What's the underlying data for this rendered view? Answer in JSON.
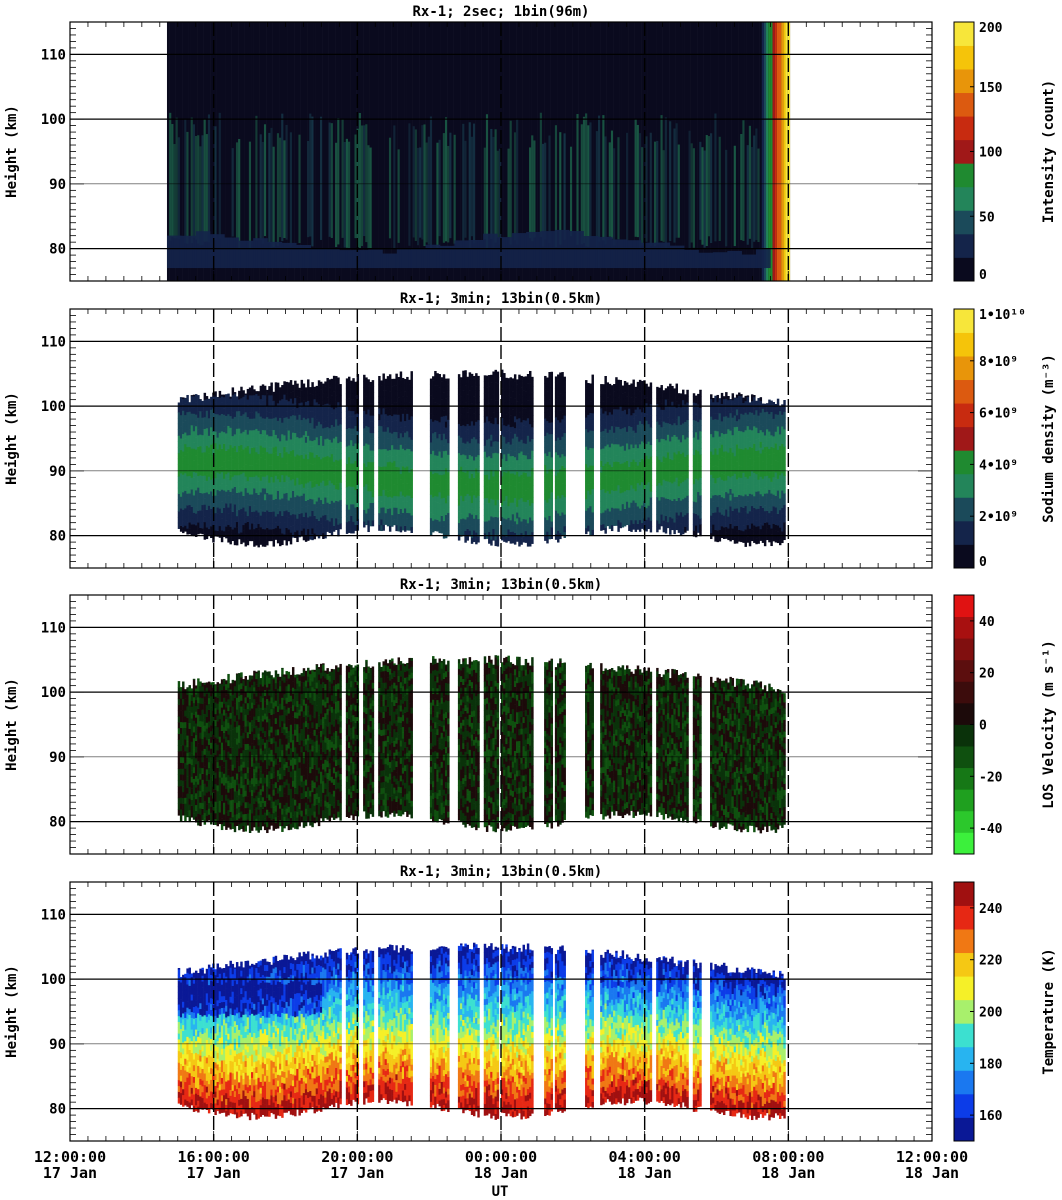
{
  "figure": {
    "x_label": "UT",
    "x_ticks": [
      {
        "time": "12:00:00",
        "date": "17 Jan",
        "hours": 0
      },
      {
        "time": "16:00:00",
        "date": "17 Jan",
        "hours": 4
      },
      {
        "time": "20:00:00",
        "date": "17 Jan",
        "hours": 8
      },
      {
        "time": "00:00:00",
        "date": "18 Jan",
        "hours": 12
      },
      {
        "time": "04:00:00",
        "date": "18 Jan",
        "hours": 16
      },
      {
        "time": "08:00:00",
        "date": "18 Jan",
        "hours": 20
      },
      {
        "time": "12:00:00",
        "date": "18 Jan",
        "hours": 24
      }
    ],
    "x_range_hours": [
      0,
      24
    ]
  },
  "chart_data": [
    {
      "type": "heatmap",
      "title": "Rx-1;  2sec; 1bin(96m)",
      "ylabel": "Height (km)",
      "ylim": [
        75,
        115
      ],
      "yticks": [
        80,
        90,
        100,
        110
      ],
      "colorbar_label": "Intensity (count)",
      "colorbar_ticks": [
        "0",
        "50",
        "100",
        "150",
        "200"
      ],
      "colorbar_range": [
        0,
        200
      ],
      "colors": [
        "#0a0a1e",
        "#14244a",
        "#1b4a5a",
        "#23855a",
        "#1f8a30",
        "#a01818",
        "#c82b10",
        "#dc5a10",
        "#e8950a",
        "#f5c40a",
        "#f7e63a"
      ],
      "data_coverage_hours": [
        2.7,
        20.0
      ]
    },
    {
      "type": "heatmap",
      "title": "Rx-1; 3min; 13bin(0.5km)",
      "ylabel": "Height (km)",
      "ylim": [
        75,
        115
      ],
      "yticks": [
        80,
        90,
        100,
        110
      ],
      "colorbar_label": "Sodium density (m⁻³)",
      "colorbar_ticks": [
        "0",
        "2•10⁹",
        "4•10⁹",
        "6•10⁹",
        "8•10⁹",
        "1•10¹⁰"
      ],
      "colorbar_range": [
        0,
        10000000000.0
      ],
      "colors": [
        "#0a0a1e",
        "#14244a",
        "#1b4a5a",
        "#23855a",
        "#1f8a30",
        "#a01818",
        "#c82b10",
        "#dc5a10",
        "#e8950a",
        "#f5c40a",
        "#f7e63a"
      ],
      "data_coverage_hours": [
        3.0,
        19.9
      ]
    },
    {
      "type": "heatmap",
      "title": "Rx-1; 3min; 13bin(0.5km)",
      "ylabel": "Height (km)",
      "ylim": [
        75,
        115
      ],
      "yticks": [
        80,
        90,
        100,
        110
      ],
      "colorbar_label": "LOS Velocity (m s⁻¹)",
      "colorbar_ticks": [
        "-40",
        "-20",
        "0",
        "20",
        "40"
      ],
      "colorbar_range": [
        -50,
        50
      ],
      "colors": [
        "#3cf03c",
        "#2cc82c",
        "#1fa01f",
        "#167816",
        "#0f500f",
        "#0a320a",
        "#1c0a0a",
        "#3c0c0c",
        "#5c0e0e",
        "#800f0f",
        "#a81010",
        "#e01212"
      ],
      "data_coverage_hours": [
        3.0,
        19.9
      ]
    },
    {
      "type": "heatmap",
      "title": "Rx-1; 3min; 13bin(0.5km)",
      "ylabel": "Height (km)",
      "ylim": [
        75,
        115
      ],
      "yticks": [
        80,
        90,
        100,
        110
      ],
      "colorbar_label": "Temperature (K)",
      "colorbar_ticks": [
        "160",
        "180",
        "200",
        "220",
        "240"
      ],
      "colorbar_range": [
        150,
        250
      ],
      "colors": [
        "#0a1896",
        "#0c3ce8",
        "#1a78f0",
        "#28b4f0",
        "#3ce0d0",
        "#a8f06c",
        "#f5f028",
        "#f5c814",
        "#f07814",
        "#e62814",
        "#a01010"
      ],
      "data_coverage_hours": [
        3.0,
        19.9
      ]
    }
  ]
}
